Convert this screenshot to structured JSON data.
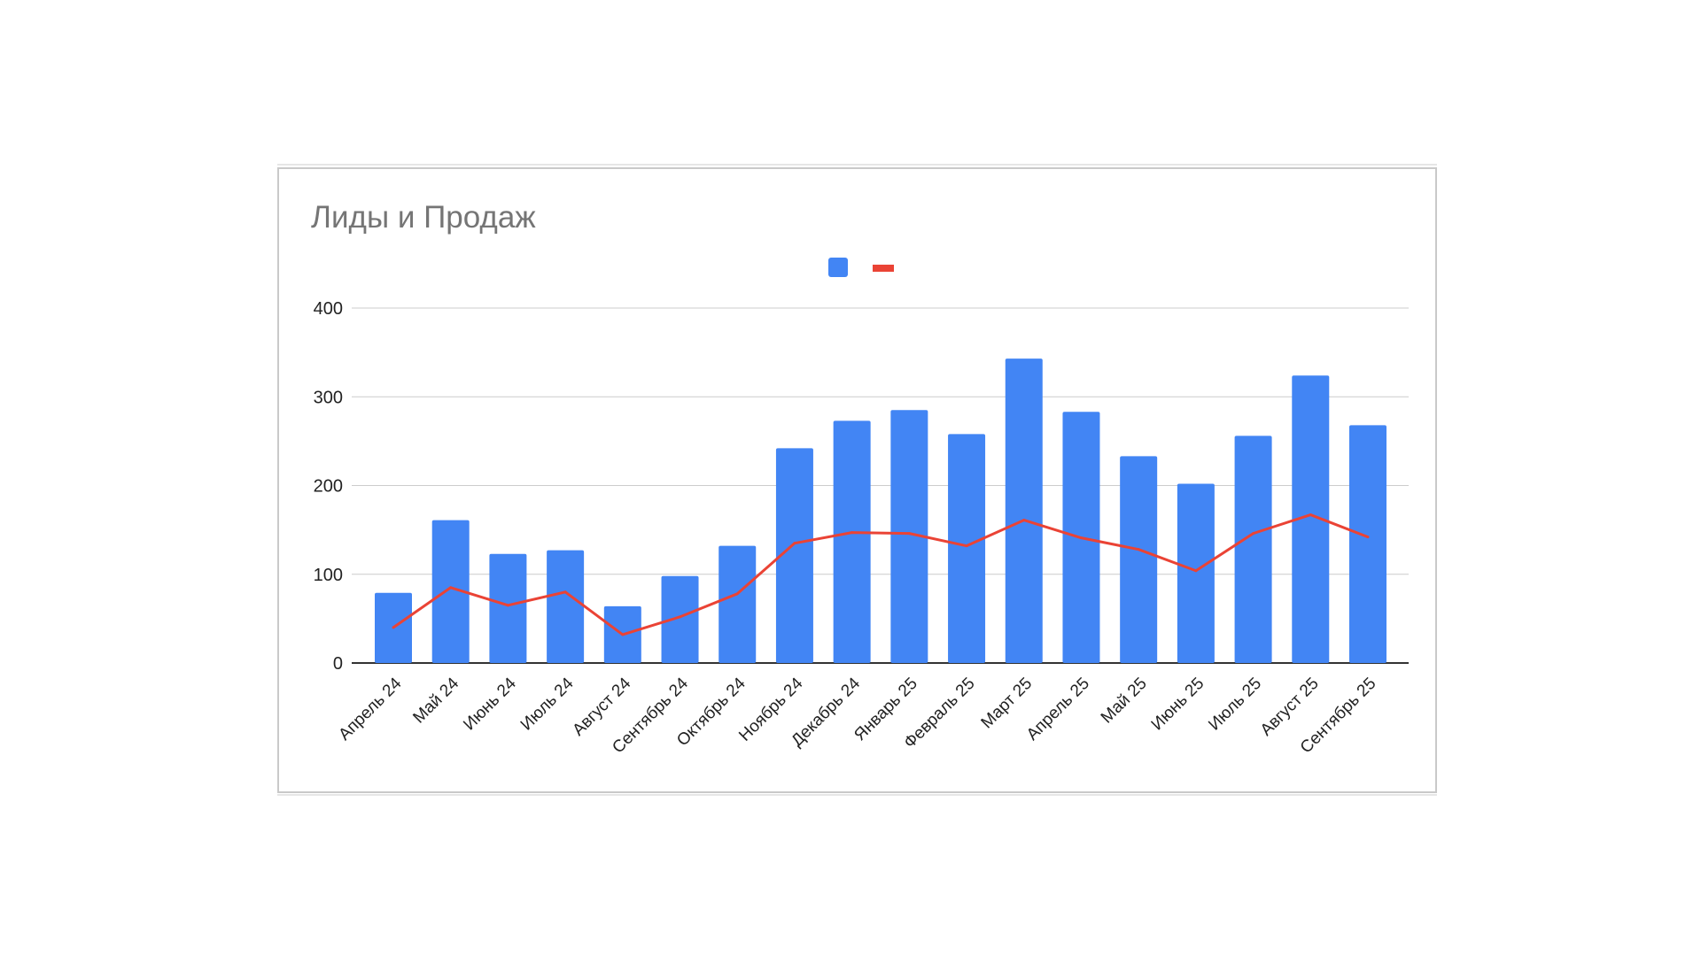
{
  "chart_data": {
    "type": "bar",
    "title": "Лиды и Продаж",
    "xlabel": "",
    "ylabel": "",
    "ylim": [
      0,
      400
    ],
    "yticks": [
      0,
      100,
      200,
      300,
      400
    ],
    "grid": true,
    "legend": "top-center",
    "categories": [
      "Апрель 24",
      "Май 24",
      "Июнь 24",
      "Июль 24",
      "Август 24",
      "Сентябрь 24",
      "Октябрь 24",
      "Ноябрь 24",
      "Декабрь 24",
      "Январь 25",
      "Февраль 25",
      "Март 25",
      "Апрель 25",
      "Май 25",
      "Июнь 25",
      "Июль 25",
      "Август 25",
      "Сентябрь 25"
    ],
    "series": [
      {
        "type": "bar",
        "color": "#4285f4",
        "values": [
          79,
          161,
          123,
          127,
          64,
          98,
          132,
          242,
          273,
          285,
          258,
          343,
          283,
          233,
          202,
          256,
          324,
          268
        ]
      },
      {
        "type": "line",
        "color": "#ea4335",
        "values": [
          40,
          85,
          65,
          80,
          32,
          52,
          78,
          135,
          147,
          146,
          132,
          161,
          141,
          128,
          104,
          146,
          167,
          142
        ]
      }
    ]
  }
}
